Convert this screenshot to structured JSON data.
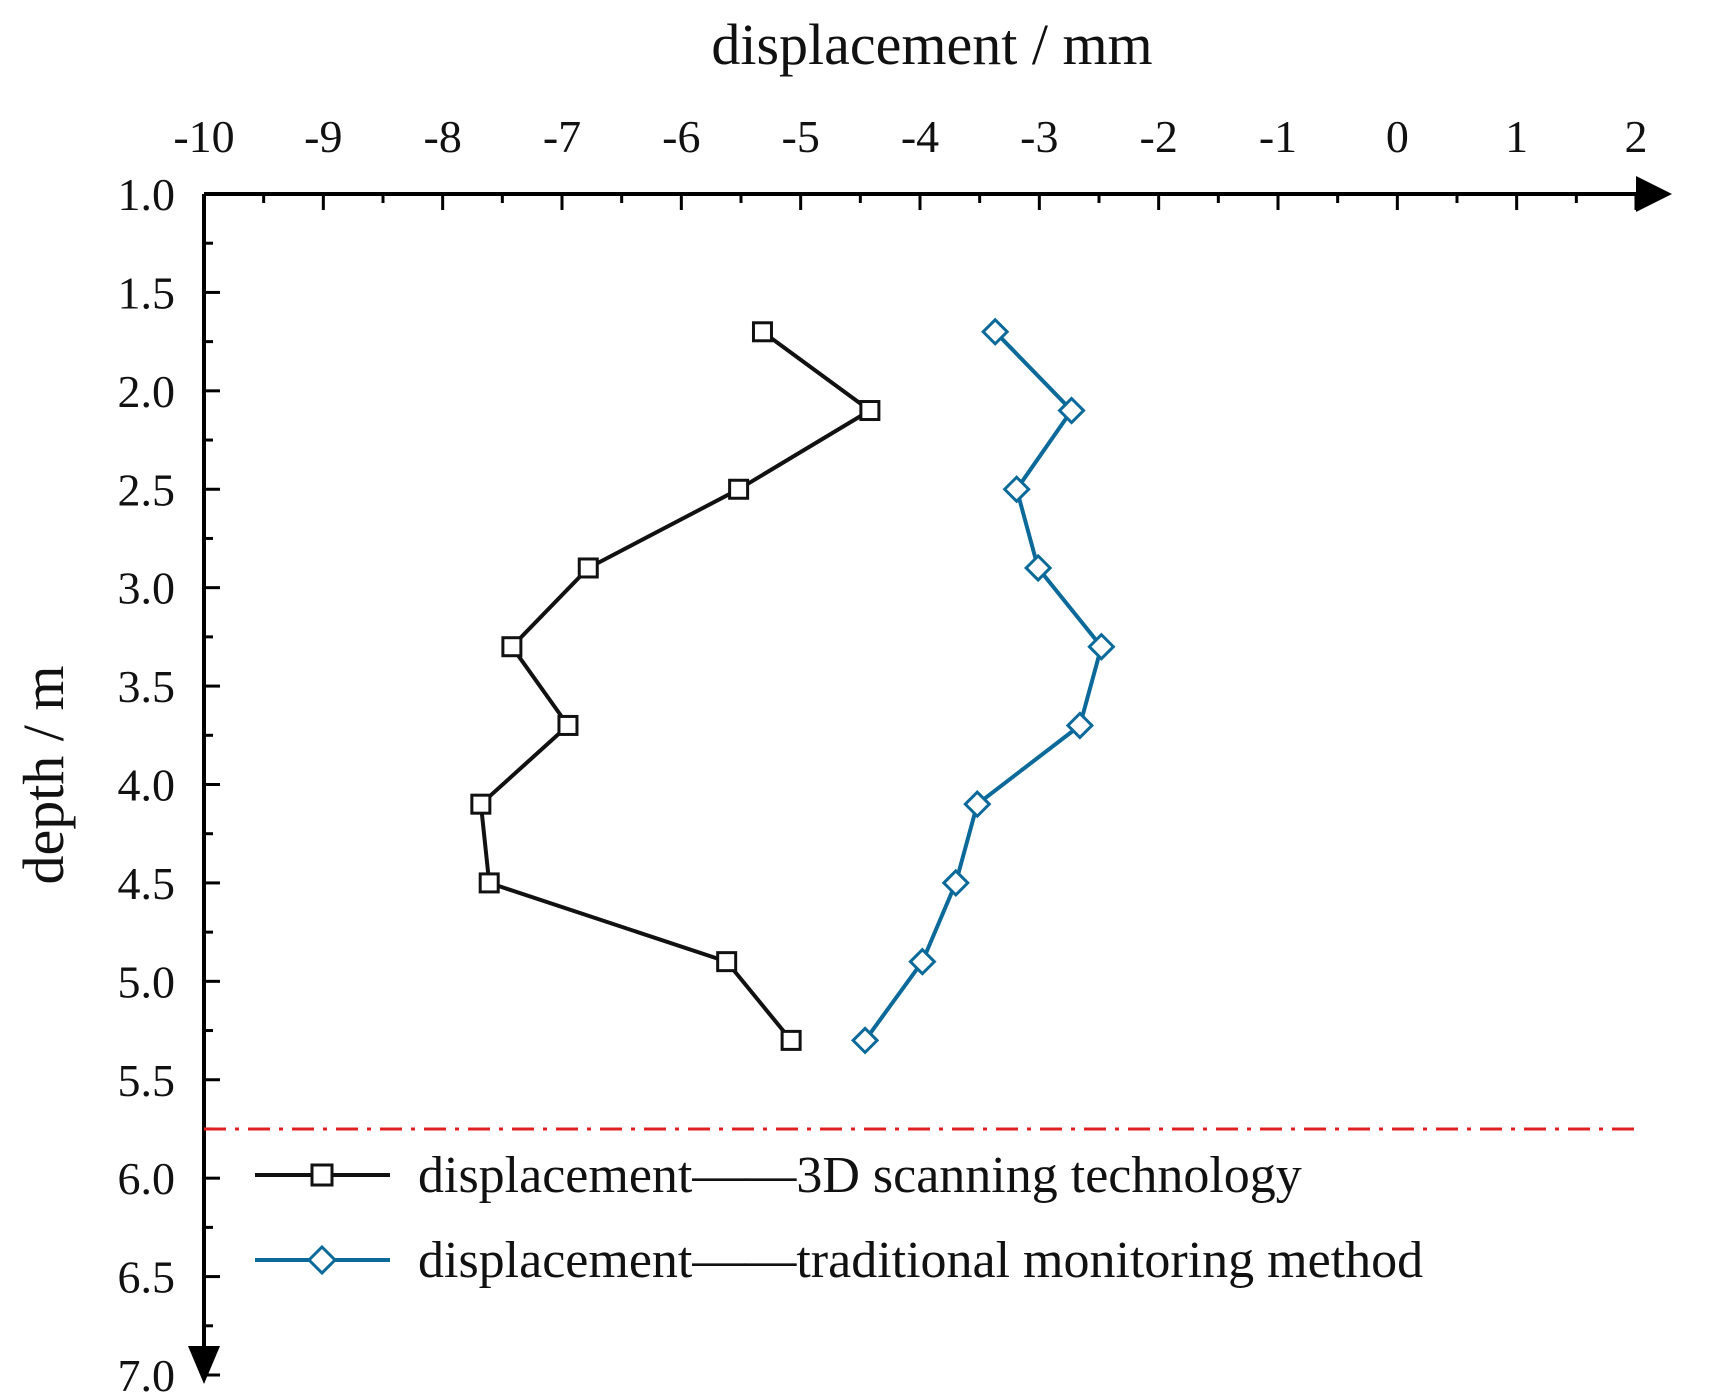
{
  "chart_data": {
    "type": "line",
    "title": "",
    "xlabel": "displacement / mm",
    "ylabel": "depth / m",
    "x_axis_position": "top",
    "y_axis_inverted": true,
    "xlim": [
      -10,
      2
    ],
    "ylim": [
      1.0,
      7.0
    ],
    "x_ticks": [
      "-10",
      "-9",
      "-8",
      "-7",
      "-6",
      "-5",
      "-4",
      "-3",
      "-2",
      "-1",
      "0",
      "1",
      "2"
    ],
    "y_ticks": [
      "1.0",
      "1.5",
      "2.0",
      "2.5",
      "3.0",
      "3.5",
      "4.0",
      "4.5",
      "5.0",
      "5.5",
      "6.0",
      "6.5",
      "7.0"
    ],
    "grid": false,
    "legend_position": "bottom",
    "series": [
      {
        "name": "displacement——3D scanning technology",
        "color": "#111111",
        "marker": "square",
        "points": [
          {
            "x": -5.32,
            "y": 1.7
          },
          {
            "x": -4.42,
            "y": 2.1
          },
          {
            "x": -5.52,
            "y": 2.5
          },
          {
            "x": -6.78,
            "y": 2.9
          },
          {
            "x": -7.42,
            "y": 3.3
          },
          {
            "x": -6.95,
            "y": 3.7
          },
          {
            "x": -7.68,
            "y": 4.1
          },
          {
            "x": -7.61,
            "y": 4.5
          },
          {
            "x": -5.62,
            "y": 4.9
          },
          {
            "x": -5.08,
            "y": 5.3
          }
        ]
      },
      {
        "name": "displacement——traditional monitoring method",
        "color": "#0b6a99",
        "marker": "diamond",
        "points": [
          {
            "x": -3.37,
            "y": 1.7
          },
          {
            "x": -2.73,
            "y": 2.1
          },
          {
            "x": -3.19,
            "y": 2.5
          },
          {
            "x": -3.01,
            "y": 2.9
          },
          {
            "x": -2.48,
            "y": 3.3
          },
          {
            "x": -2.66,
            "y": 3.7
          },
          {
            "x": -3.52,
            "y": 4.1
          },
          {
            "x": -3.7,
            "y": 4.5
          },
          {
            "x": -3.98,
            "y": 4.9
          },
          {
            "x": -4.46,
            "y": 5.3
          }
        ]
      }
    ],
    "reference_line": {
      "y": 5.75,
      "color": "#e02020",
      "style": "dash-dot"
    }
  }
}
